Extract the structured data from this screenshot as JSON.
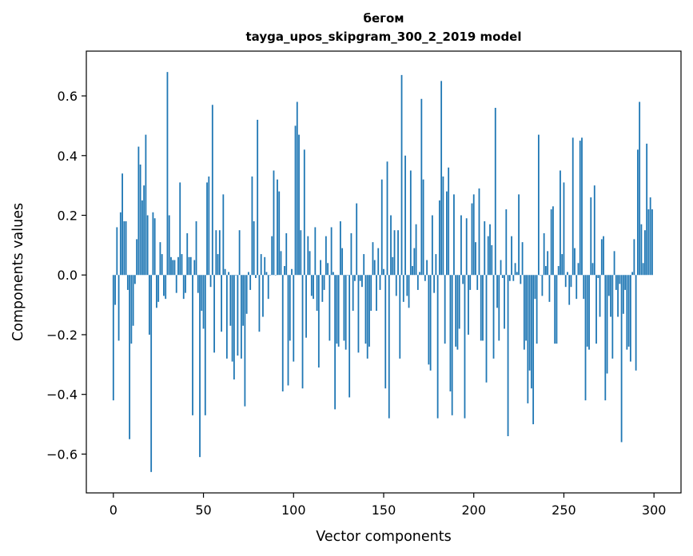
{
  "chart_data": {
    "type": "bar",
    "title": "бегом",
    "subtitle": "tayga_upos_skipgram_300_2_2019 model",
    "xlabel": "Vector components",
    "ylabel": "Components values",
    "xlim": [
      -15,
      315
    ],
    "ylim": [
      -0.73,
      0.75
    ],
    "xticks": [
      0,
      50,
      100,
      150,
      200,
      250,
      300
    ],
    "yticks": [
      -0.6,
      -0.4,
      -0.2,
      0.0,
      0.2,
      0.4,
      0.6
    ],
    "xtick_labels": [
      "0",
      "50",
      "100",
      "150",
      "200",
      "250",
      "300"
    ],
    "ytick_labels": [
      "−0.6",
      "−0.4",
      "−0.2",
      "0.0",
      "0.2",
      "0.4",
      "0.6"
    ],
    "grid": false,
    "bar_color": "#1f77b4",
    "values": [
      -0.42,
      -0.1,
      0.16,
      -0.22,
      0.21,
      0.34,
      0.18,
      0.18,
      -0.05,
      -0.55,
      -0.23,
      -0.17,
      -0.03,
      0.12,
      0.43,
      0.37,
      0.25,
      0.3,
      0.47,
      0.2,
      -0.2,
      -0.66,
      0.21,
      0.19,
      -0.11,
      -0.09,
      0.11,
      0.07,
      -0.07,
      -0.08,
      0.68,
      0.2,
      0.06,
      0.05,
      0.05,
      -0.06,
      0.06,
      0.31,
      0.07,
      -0.08,
      -0.06,
      0.14,
      0.06,
      0.06,
      -0.47,
      0.05,
      0.18,
      -0.06,
      -0.61,
      -0.12,
      -0.18,
      -0.47,
      0.31,
      0.33,
      -0.04,
      0.57,
      -0.26,
      0.15,
      0.07,
      0.15,
      -0.19,
      0.27,
      0.02,
      -0.28,
      0.01,
      -0.17,
      -0.29,
      -0.35,
      0.0,
      -0.27,
      0.15,
      -0.28,
      -0.17,
      -0.44,
      -0.13,
      0.01,
      -0.05,
      0.33,
      0.18,
      -0.01,
      0.52,
      -0.19,
      0.07,
      -0.14,
      0.06,
      0.01,
      -0.08,
      0.0,
      0.13,
      0.35,
      0.0,
      0.32,
      0.28,
      0.08,
      -0.39,
      0.03,
      0.14,
      -0.37,
      -0.22,
      0.02,
      -0.29,
      0.5,
      0.58,
      0.47,
      0.15,
      -0.38,
      0.42,
      -0.21,
      0.13,
      0.08,
      -0.07,
      -0.08,
      0.16,
      -0.12,
      -0.31,
      0.05,
      -0.09,
      -0.05,
      0.13,
      0.04,
      -0.22,
      0.16,
      0.01,
      -0.45,
      -0.23,
      -0.24,
      0.18,
      0.09,
      -0.22,
      -0.25,
      0.0,
      -0.41,
      0.14,
      -0.12,
      -0.02,
      0.24,
      -0.26,
      -0.02,
      -0.04,
      0.07,
      -0.23,
      -0.28,
      -0.24,
      -0.12,
      0.11,
      0.05,
      -0.12,
      0.09,
      -0.05,
      0.32,
      0.02,
      -0.38,
      0.38,
      -0.48,
      0.2,
      0.06,
      0.15,
      -0.07,
      0.15,
      -0.28,
      0.67,
      -0.09,
      0.4,
      -0.07,
      -0.11,
      0.35,
      0.03,
      0.09,
      0.17,
      -0.05,
      0.01,
      0.59,
      0.32,
      -0.02,
      0.05,
      -0.3,
      -0.32,
      0.2,
      -0.06,
      0.07,
      -0.48,
      0.25,
      0.65,
      0.33,
      -0.23,
      0.28,
      0.36,
      -0.39,
      -0.47,
      0.27,
      -0.24,
      -0.25,
      -0.18,
      0.2,
      -0.03,
      -0.48,
      0.19,
      -0.2,
      -0.05,
      0.24,
      0.27,
      0.11,
      -0.05,
      0.29,
      -0.22,
      -0.22,
      0.18,
      -0.36,
      0.13,
      0.17,
      0.1,
      -0.28,
      0.56,
      -0.11,
      -0.22,
      0.05,
      -0.01,
      -0.18,
      0.22,
      -0.54,
      -0.02,
      0.13,
      -0.02,
      0.04,
      0.01,
      0.27,
      -0.03,
      0.11,
      -0.25,
      -0.22,
      -0.43,
      -0.32,
      -0.38,
      -0.5,
      -0.08,
      -0.23,
      0.47,
      0.0,
      -0.07,
      0.14,
      0.03,
      0.08,
      -0.09,
      0.22,
      0.23,
      -0.23,
      -0.23,
      0.03,
      0.35,
      0.07,
      0.31,
      -0.04,
      0.01,
      -0.1,
      -0.04,
      0.46,
      0.09,
      -0.08,
      0.04,
      0.45,
      0.46,
      -0.08,
      -0.42,
      -0.24,
      -0.25,
      0.26,
      0.04,
      0.3,
      -0.23,
      -0.01,
      -0.14,
      0.12,
      0.13,
      -0.42,
      -0.33,
      -0.07,
      -0.14,
      -0.28,
      0.08,
      -0.05,
      -0.14,
      -0.03,
      -0.56,
      -0.13,
      -0.05,
      -0.25,
      -0.24,
      -0.29,
      0.01,
      0.12,
      -0.32,
      0.42,
      0.58,
      0.17,
      0.04,
      0.15,
      0.44,
      0.22,
      0.26,
      0.22
    ]
  }
}
